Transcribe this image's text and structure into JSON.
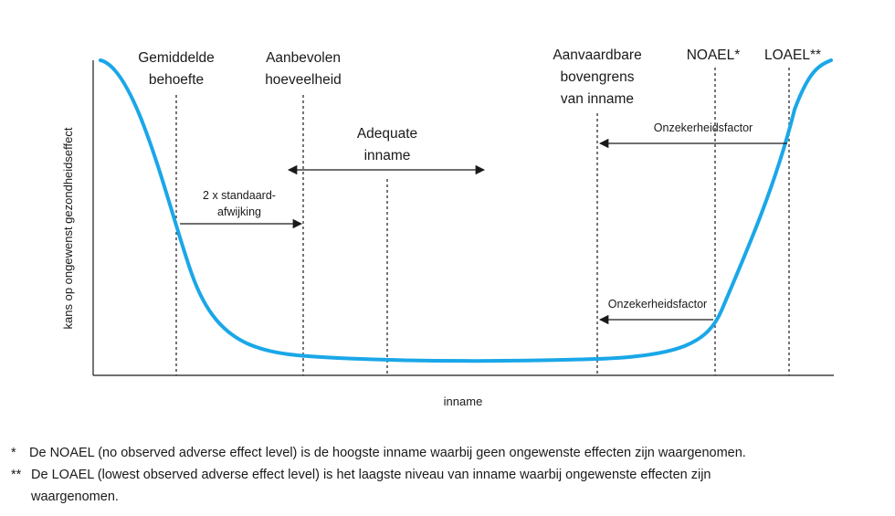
{
  "labels": {
    "mean_requirement_l1": "Gemiddelde",
    "mean_requirement_l2": "behoefte",
    "recommended_l1": "Aanbevolen",
    "recommended_l2": "hoeveelheid",
    "adequate_l1": "Adequate",
    "adequate_l2": "inname",
    "upper_limit_l1": "Aanvaardbare",
    "upper_limit_l2": "bovengrens",
    "upper_limit_l3": "van inname",
    "noael": "NOAEL*",
    "loael": "LOAEL**",
    "sd_l1": "2 x standaard-",
    "sd_l2": "afwijking",
    "uncertainty_top": "Onzekerheidsfactor",
    "uncertainty_bottom": "Onzekerheidsfactor",
    "x_axis": "inname",
    "y_axis": "kans op ongewenst gezondheidseffect"
  },
  "footnotes": {
    "mark1": "*",
    "text1": "De NOAEL (no observed adverse effect level) is de hoogste inname waarbij geen ongewenste effecten zijn waargenomen.",
    "mark2": "**",
    "text2": "De LOAEL (lowest observed adverse effect level) is het laagste niveau van inname waarbij ongewenste effecten zijn waargenomen."
  },
  "colors": {
    "curve": "#1aa7e8",
    "ink": "#1a1a1a"
  }
}
